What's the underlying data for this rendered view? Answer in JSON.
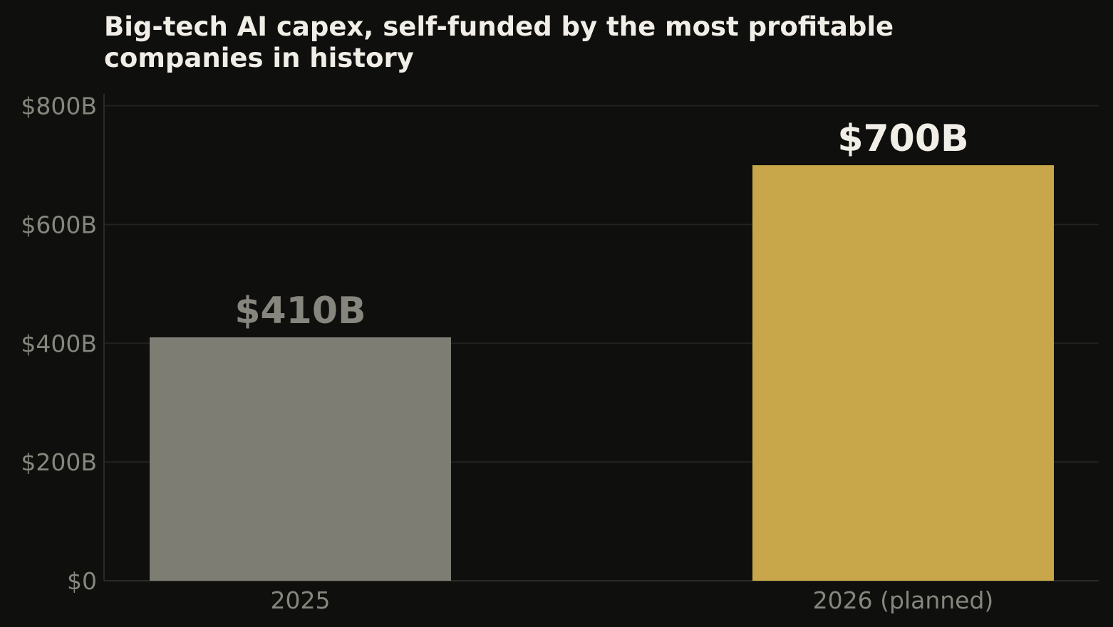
{
  "colors": {
    "background": "#0f0f0d",
    "title": "#f0eee6",
    "tick_label": "#86867e",
    "grid": "#222220",
    "axis": "#2a2a28",
    "bar_2025": "#7d7d74",
    "bar_2026": "#c8a74b",
    "value_label_2025": "#86867e",
    "value_label_2026": "#f0eee6"
  },
  "chart_data": {
    "type": "bar",
    "title_lines": [
      "Big-tech AI capex, self-funded by the most profitable",
      "companies in history"
    ],
    "categories": [
      "2025",
      "2026 (planned)"
    ],
    "values": [
      410,
      700
    ],
    "value_labels": [
      "$410B",
      "$700B"
    ],
    "yticks": [
      0,
      200,
      400,
      600,
      800
    ],
    "ytick_labels": [
      "$0",
      "$200B",
      "$400B",
      "$600B",
      "$800B"
    ],
    "ylim": [
      0,
      820
    ],
    "grid": true,
    "xlabel": "",
    "ylabel": ""
  }
}
